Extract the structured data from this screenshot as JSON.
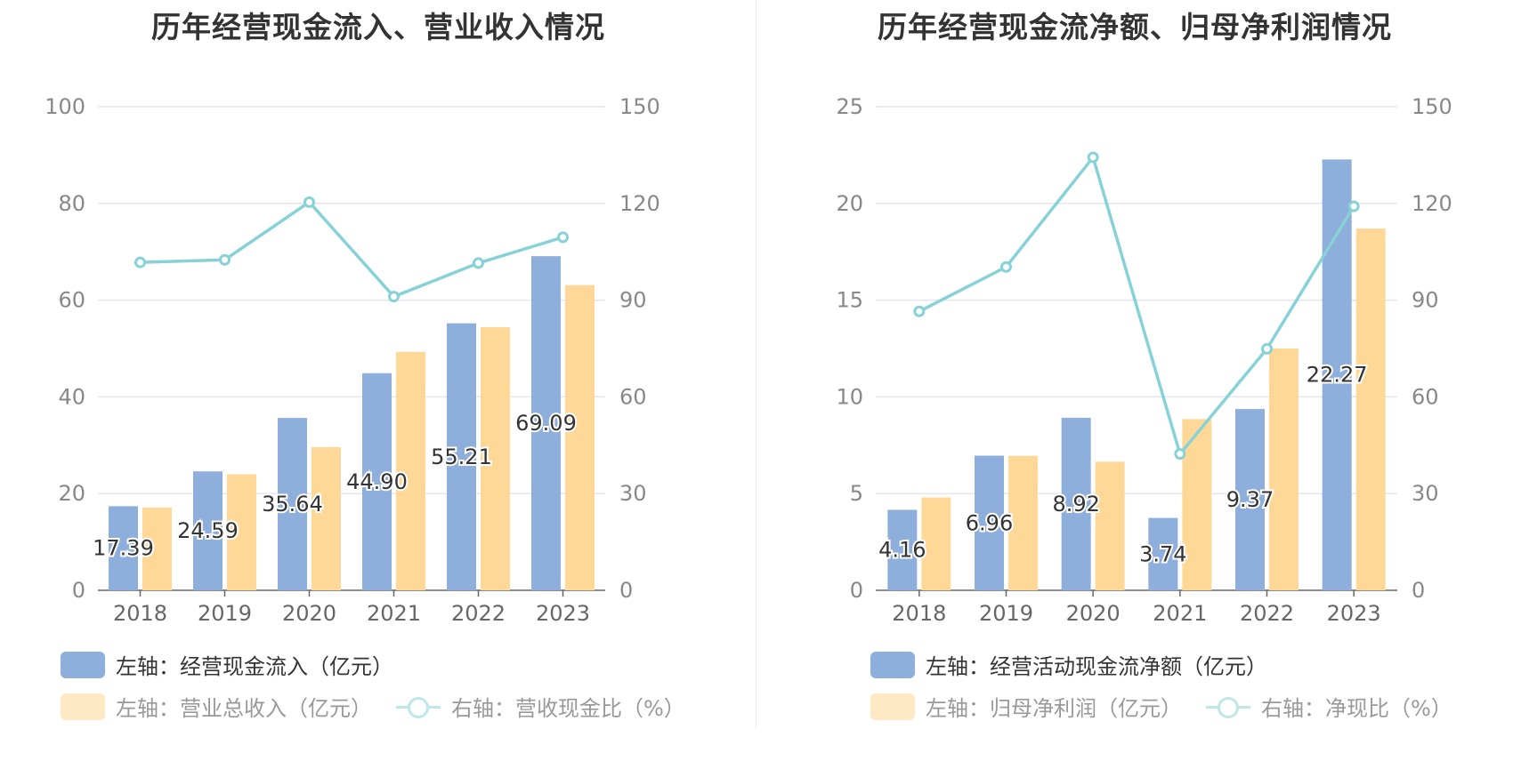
{
  "charts": {
    "left": {
      "title": "历年经营现金流入、营业收入情况",
      "legend": [
        {
          "label": "左轴：经营现金流入（亿元）",
          "color": "#8eaedb",
          "type": "bar"
        },
        {
          "label": "左轴：营业总收入（亿元）",
          "color": "#ffe8c4",
          "type": "bar"
        },
        {
          "label": "右轴：营收现金比（%）",
          "color": "#bfe7ea",
          "type": "line"
        }
      ]
    },
    "right": {
      "title": "历年经营现金流净额、归母净利润情况",
      "legend": [
        {
          "label": "左轴：经营活动现金流净额（亿元）",
          "color": "#8eaedb",
          "type": "bar"
        },
        {
          "label": "左轴：归母净利润（亿元）",
          "color": "#ffe8c4",
          "type": "bar"
        },
        {
          "label": "右轴：净现比（%）",
          "color": "#bfe7ea",
          "type": "line"
        }
      ]
    }
  },
  "chart_data": [
    {
      "type": "bar",
      "title": "历年经营现金流入、营业收入情况",
      "categories": [
        "2018",
        "2019",
        "2020",
        "2021",
        "2022",
        "2023"
      ],
      "y_left": {
        "lim": [
          0,
          100
        ],
        "ticks": [
          0,
          20,
          40,
          60,
          80,
          100
        ]
      },
      "y_right": {
        "lim": [
          0,
          150
        ],
        "ticks": [
          0,
          30,
          60,
          90,
          120,
          150
        ]
      },
      "series": [
        {
          "name": "左轴：经营现金流入（亿元）",
          "axis": "left",
          "type": "bar",
          "color": "#8eaedb",
          "values": [
            17.39,
            24.59,
            35.64,
            44.9,
            55.21,
            69.09
          ],
          "labels": [
            "17.39",
            "24.59",
            "35.64",
            "44.90",
            "55.21",
            "69.09"
          ]
        },
        {
          "name": "左轴：营业总收入（亿元）",
          "axis": "left",
          "type": "bar",
          "color": "#ffd898",
          "values": [
            17.1,
            24.0,
            29.6,
            49.3,
            54.4,
            63.1
          ]
        },
        {
          "name": "右轴：营收现金比（%）",
          "axis": "right",
          "type": "line",
          "color": "#86d2d6",
          "values": [
            101.7,
            102.5,
            120.4,
            91.1,
            101.5,
            109.5
          ]
        }
      ],
      "grid": true
    },
    {
      "type": "bar",
      "title": "历年经营现金流净额、归母净利润情况",
      "categories": [
        "2018",
        "2019",
        "2020",
        "2021",
        "2022",
        "2023"
      ],
      "y_left": {
        "lim": [
          0,
          25
        ],
        "ticks": [
          0,
          5,
          10,
          15,
          20,
          25
        ]
      },
      "y_right": {
        "lim": [
          0,
          150
        ],
        "ticks": [
          0,
          30,
          60,
          90,
          120,
          150
        ]
      },
      "series": [
        {
          "name": "左轴：经营活动现金流净额（亿元）",
          "axis": "left",
          "type": "bar",
          "color": "#8eaedb",
          "values": [
            4.16,
            6.96,
            8.92,
            3.74,
            9.37,
            22.27
          ],
          "labels": [
            "4.16",
            "6.96",
            "8.92",
            "3.74",
            "9.37",
            "22.27"
          ]
        },
        {
          "name": "左轴：归母净利润（亿元）",
          "axis": "left",
          "type": "bar",
          "color": "#ffd898",
          "values": [
            4.8,
            6.95,
            6.65,
            8.85,
            12.5,
            18.7
          ]
        },
        {
          "name": "右轴：净现比（%）",
          "axis": "right",
          "type": "line",
          "color": "#86d2d6",
          "values": [
            86.5,
            100.3,
            134.3,
            42.3,
            74.9,
            119.1
          ]
        }
      ],
      "grid": true
    }
  ]
}
